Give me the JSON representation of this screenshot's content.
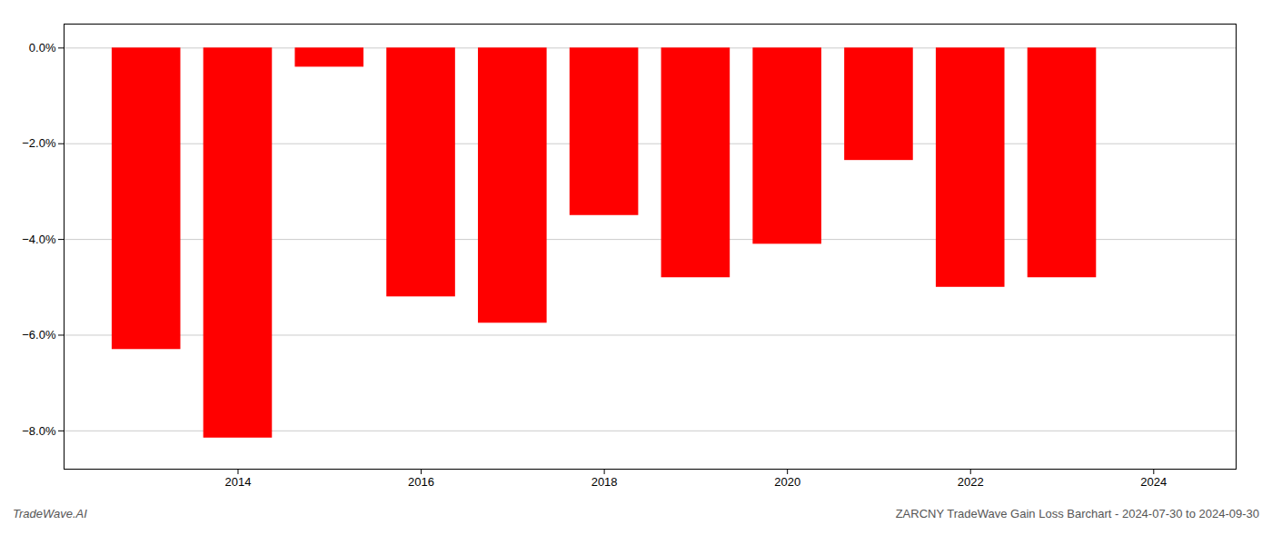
{
  "chart_data": {
    "type": "bar",
    "x": [
      2013,
      2014,
      2015,
      2016,
      2017,
      2018,
      2019,
      2020,
      2021,
      2022,
      2023
    ],
    "values": [
      -6.3,
      -8.15,
      -0.4,
      -5.2,
      -5.75,
      -3.5,
      -4.8,
      -4.1,
      -2.35,
      -5.0,
      -4.8
    ],
    "color": "#ff0000",
    "xlim": [
      2012.1,
      2024.9
    ],
    "xticks": [
      2014,
      2016,
      2018,
      2020,
      2022,
      2024
    ],
    "ylim": [
      -8.8,
      0.5
    ],
    "yticks": [
      {
        "value": 0.0,
        "label": "0.0%"
      },
      {
        "value": -2.0,
        "label": "−2.0%"
      },
      {
        "value": -4.0,
        "label": "−4.0%"
      },
      {
        "value": -6.0,
        "label": "−6.0%"
      },
      {
        "value": -8.0,
        "label": "−8.0%"
      }
    ],
    "grid": true,
    "annotations": [
      "TradeWave.AI",
      "ZARCNY TradeWave Gain Loss Barchart - 2024-07-30 to 2024-09-30"
    ]
  }
}
